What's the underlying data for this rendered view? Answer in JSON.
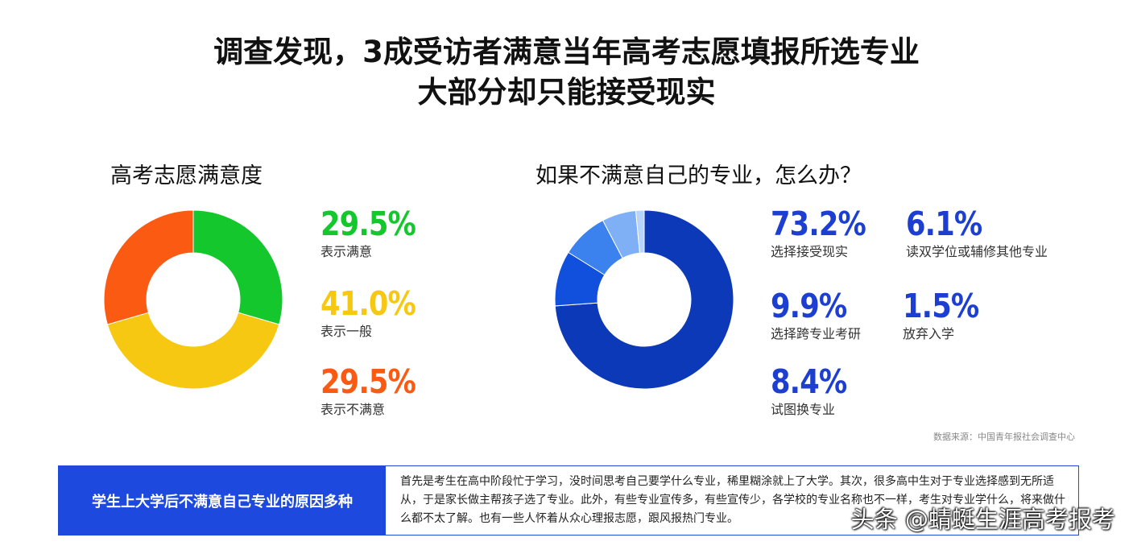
{
  "title": {
    "line1": "调查发现，3成受访者满意当年高考志愿填报所选专业",
    "line2": "大部分却只能接受现实"
  },
  "left_title": "高考志愿满意度",
  "right_title": "如果不满意自己的专业，怎么办？",
  "left_stats": [
    {
      "pct": "29.5%",
      "label": "表示满意",
      "color": "#13c72c"
    },
    {
      "pct": "41.0%",
      "label": "表示一般",
      "color": "#f6c812"
    },
    {
      "pct": "29.5%",
      "label": "表示不满意",
      "color": "#fb5a12"
    }
  ],
  "right_stats": [
    {
      "pct": "73.2%",
      "label": "选择接受现实",
      "color": "#1c3fd1"
    },
    {
      "pct": "6.1%",
      "label": "读双学位或辅修其他专业",
      "color": "#1c3fd1"
    },
    {
      "pct": "9.9%",
      "label": "选择跨专业考研",
      "color": "#1c3fd1"
    },
    {
      "pct": "1.5%",
      "label": "放弃入学",
      "color": "#1c3fd1"
    },
    {
      "pct": "8.4%",
      "label": "试图换专业",
      "color": "#1c3fd1"
    }
  ],
  "source": "数据来源：中国青年报社会调查中心",
  "reason": {
    "heading": "学生上大学后不满意自己专业的原因多种",
    "text": "首先是考生在高中阶段忙于学习，没时间思考自己要学什么专业，稀里糊涂就上了大学。其次，很多高中生对于专业选择感到无所适从，于是家长做主帮孩子选了专业。此外，有些专业宣传多，有些宣传少，各学校的专业名称也不一样，考生对专业学什么，将来做什么都不太了解。也有一些人怀着从众心理报志愿，跟风报热门专业。"
  },
  "watermark": "头条 @蜻蜓生涯高考报考",
  "chart_data": [
    {
      "type": "pie",
      "donut": true,
      "title": "高考志愿满意度",
      "categories": [
        "表示满意",
        "表示一般",
        "表示不满意"
      ],
      "values": [
        29.5,
        41.0,
        29.5
      ],
      "colors": [
        "#13c72c",
        "#f6c812",
        "#fb5a12"
      ]
    },
    {
      "type": "pie",
      "donut": true,
      "title": "如果不满意自己的专业，怎么办？",
      "categories": [
        "选择接受现实",
        "选择跨专业考研",
        "试图换专业",
        "读双学位或辅修其他专业",
        "放弃入学"
      ],
      "values": [
        73.2,
        9.9,
        8.4,
        6.1,
        1.5
      ],
      "colors": [
        "#0c39b8",
        "#1150dc",
        "#3c82ef",
        "#7fb0f6",
        "#b9d4fa"
      ]
    }
  ]
}
